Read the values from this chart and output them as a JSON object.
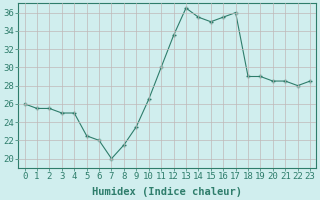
{
  "x": [
    0,
    1,
    2,
    3,
    4,
    5,
    6,
    7,
    8,
    9,
    10,
    11,
    12,
    13,
    14,
    15,
    16,
    17,
    18,
    19,
    20,
    21,
    22,
    23
  ],
  "y": [
    26,
    25.5,
    25.5,
    25,
    25,
    22.5,
    22,
    20,
    21.5,
    23.5,
    26.5,
    30,
    33.5,
    36.5,
    35.5,
    35,
    35.5,
    36,
    29,
    29,
    28.5,
    28.5,
    28,
    28.5
  ],
  "line_color": "#2e7d6b",
  "marker_color": "#2e7d6b",
  "bg_color": "#d0eeee",
  "grid_color": "#c0b8b8",
  "xlabel": "Humidex (Indice chaleur)",
  "ylim": [
    19,
    37
  ],
  "xlim": [
    -0.5,
    23.5
  ],
  "yticks": [
    20,
    22,
    24,
    26,
    28,
    30,
    32,
    34,
    36
  ],
  "xticks": [
    0,
    1,
    2,
    3,
    4,
    5,
    6,
    7,
    8,
    9,
    10,
    11,
    12,
    13,
    14,
    15,
    16,
    17,
    18,
    19,
    20,
    21,
    22,
    23
  ],
  "tick_color": "#2e7d6b",
  "label_color": "#2e7d6b",
  "spine_color": "#2e7d6b",
  "font_size_xlabel": 7.5,
  "font_size_tick": 6.5
}
